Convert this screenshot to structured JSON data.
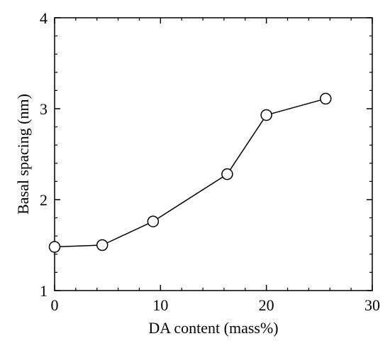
{
  "chart_data": {
    "type": "line",
    "title": "",
    "xlabel": "DA content (mass%)",
    "ylabel": "Basal spacing (nm)",
    "xlim": [
      0,
      30
    ],
    "ylim": [
      1,
      4
    ],
    "x_ticks": [
      0,
      10,
      20,
      30
    ],
    "x_tick_labels": [
      "0",
      "10",
      "20",
      "30"
    ],
    "y_ticks": [
      1,
      2,
      3,
      4
    ],
    "y_tick_labels": [
      "1",
      "2",
      "3",
      "4"
    ],
    "grid": false,
    "marker": "open-circle",
    "series": [
      {
        "x": [
          0,
          4.5,
          9.3,
          16.3,
          20.0,
          25.6
        ],
        "y": [
          1.48,
          1.5,
          1.76,
          2.28,
          2.93,
          3.11
        ]
      }
    ]
  }
}
